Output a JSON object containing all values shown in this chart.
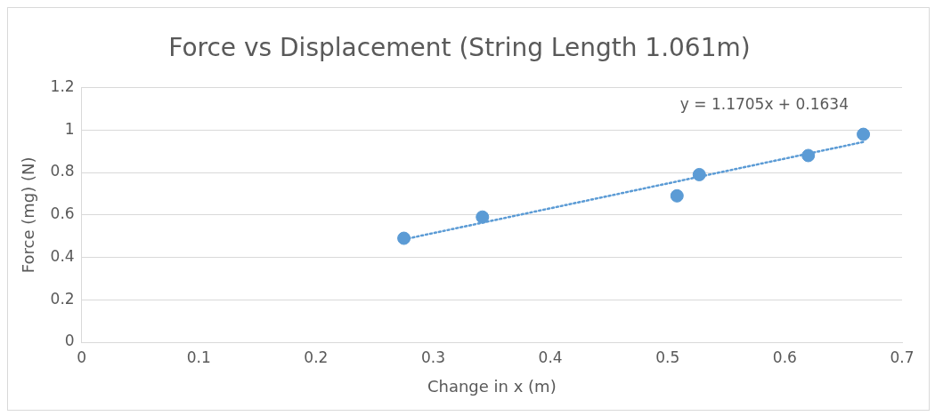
{
  "chart_data": {
    "type": "scatter",
    "title": "Force vs Displacement (String Length 1.061m)",
    "xlabel": "Change in x (m)",
    "ylabel": "Force (mg) (N)",
    "series": [
      {
        "color": "#5b9bd5",
        "marker": "circle",
        "x": [
          0.275,
          0.342,
          0.508,
          0.527,
          0.62,
          0.667
        ],
        "values": [
          0.49,
          0.59,
          0.69,
          0.79,
          0.88,
          0.98
        ]
      },
      {
        "type": "line",
        "color": "#5b9bd5",
        "marker": "none",
        "line_style": "dotted",
        "x": [
          0.275,
          0.667
        ],
        "values": [
          0.485,
          0.944
        ]
      }
    ],
    "xlim": [
      0,
      0.7
    ],
    "xticks": [
      0,
      0.1,
      0.2,
      0.3,
      0.4,
      0.5,
      0.6,
      0.7
    ],
    "ylim": [
      0,
      1.2
    ],
    "yticks": [
      0,
      0.2,
      0.4,
      0.6,
      0.8,
      1,
      1.2
    ],
    "grid": "y",
    "legend": false,
    "annotations": [
      "y = 1.1705x + 0.1634"
    ]
  }
}
